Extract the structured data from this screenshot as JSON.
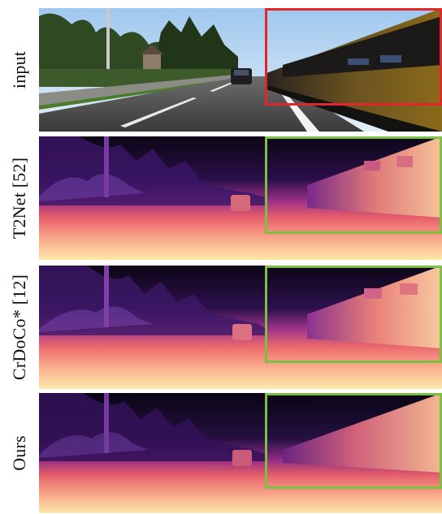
{
  "rows": [
    {
      "id": "input",
      "label": "input",
      "kind": "rgb",
      "box_color": "#e0262b"
    },
    {
      "id": "t2net",
      "label": "T2Net [52]",
      "kind": "depth",
      "box_color": "#7bc043"
    },
    {
      "id": "crdoco",
      "label": "CrDoCo* [12]",
      "kind": "depth",
      "box_color": "#7bc043"
    },
    {
      "id": "ours",
      "label": "Ours",
      "kind": "depth",
      "box_color": "#7bc043"
    }
  ],
  "colors": {
    "input_box": "#e0262b",
    "result_box": "#7bc043",
    "depth_near": "#fde7a8",
    "depth_mid": "#e8606a",
    "depth_far": "#0c0616"
  }
}
